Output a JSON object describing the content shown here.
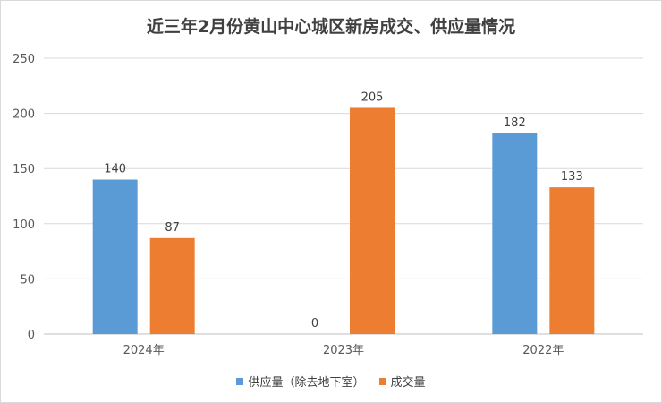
{
  "chart_data": {
    "type": "bar",
    "title": "近三年2月份黄山中心城区新房成交、供应量情况",
    "categories": [
      "2024年",
      "2023年",
      "2022年"
    ],
    "series": [
      {
        "name": "供应量（除去地下室）",
        "values": [
          140,
          0,
          182
        ],
        "color": "#5b9bd5"
      },
      {
        "name": "成交量",
        "values": [
          87,
          205,
          133
        ],
        "color": "#ed7d31"
      }
    ],
    "ylim": [
      0,
      250
    ],
    "yticks": [
      0,
      50,
      100,
      150,
      200,
      250
    ],
    "grid": true,
    "legend_position": "bottom"
  }
}
